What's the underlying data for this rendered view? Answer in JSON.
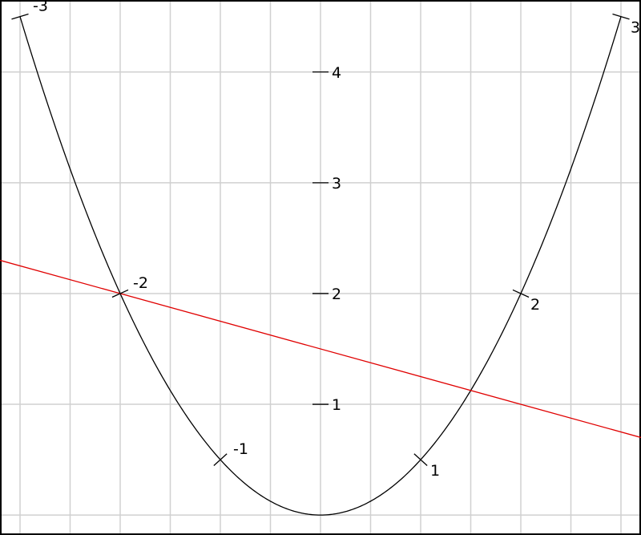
{
  "chart_data": {
    "type": "line",
    "title": "",
    "xlabel": "",
    "ylabel": "",
    "xlim": [
      -3.2,
      3.2
    ],
    "ylim": [
      -0.18,
      4.65
    ],
    "grid": true,
    "curve": {
      "color": "#000000",
      "x": [
        -3,
        -2,
        -1,
        0,
        1,
        2,
        3
      ],
      "y": [
        4.5,
        2,
        0.5,
        0,
        0.5,
        2,
        4.5
      ],
      "tick_labels": [
        "-3",
        "-2",
        "-1",
        "",
        "1",
        "2",
        "3"
      ]
    },
    "line": {
      "color": "#e00000",
      "x": [
        -2,
        2
      ],
      "y": [
        2,
        1
      ]
    },
    "y_axis_ticks": {
      "values": [
        1,
        2,
        3,
        4
      ],
      "labels": [
        "1",
        "2",
        "3",
        "4"
      ]
    }
  }
}
